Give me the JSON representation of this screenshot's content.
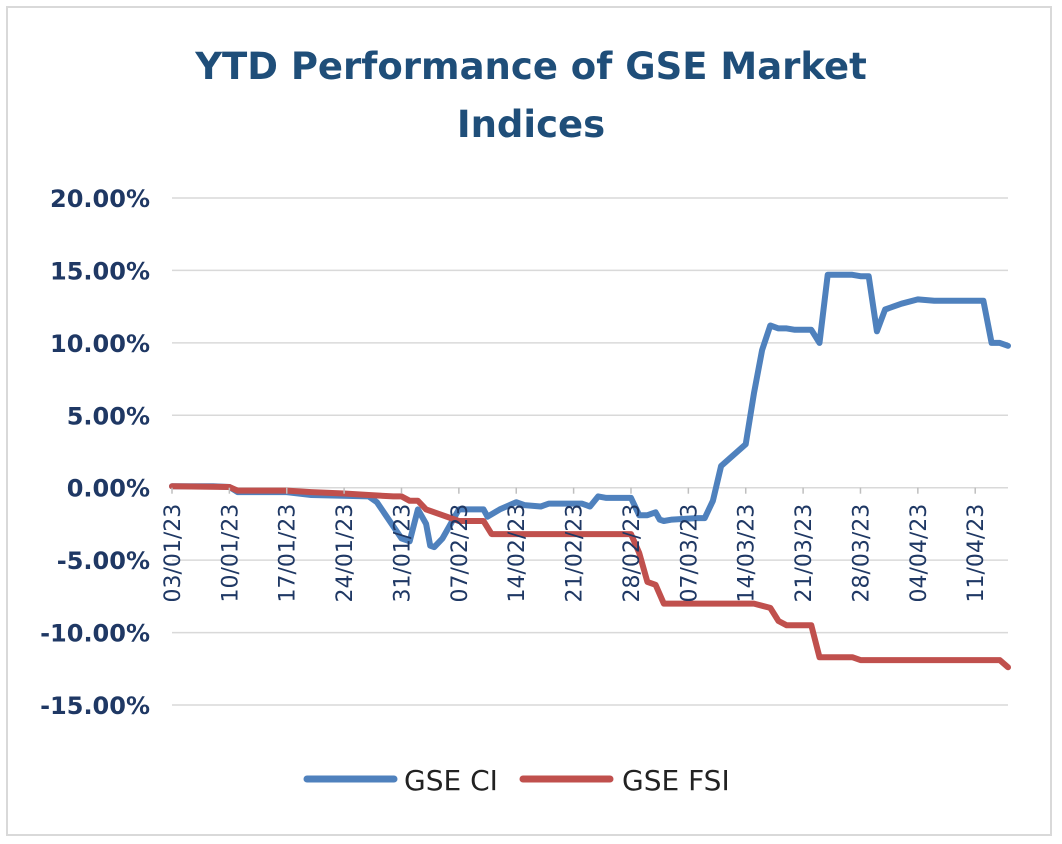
{
  "chart_data": {
    "type": "line",
    "title_lines": [
      "YTD Performance of GSE Market",
      "Indices"
    ],
    "title": "YTD Performance of GSE Market Indices",
    "xlabel": "",
    "ylabel": "",
    "ylim": [
      -15,
      20
    ],
    "yticks": [
      20,
      15,
      10,
      5,
      0,
      -5,
      -10,
      -15
    ],
    "ytick_labels": [
      "20.00%",
      "15.00%",
      "10.00%",
      "5.00%",
      "0.00%",
      "-5.00%",
      "-10.00%",
      "-15.00%"
    ],
    "x_range": [
      0,
      102
    ],
    "xtick_positions": [
      0,
      7,
      14,
      21,
      28,
      35,
      42,
      49,
      56,
      63,
      70,
      77,
      84,
      91,
      98
    ],
    "xtick_labels": [
      "03/01/23",
      "10/01/23",
      "17/01/23",
      "24/01/23",
      "31/01/23",
      "07/02/23",
      "14/02/23",
      "21/02/23",
      "28/02/23",
      "07/03/23",
      "14/03/23",
      "21/03/23",
      "28/03/23",
      "04/04/23",
      "11/04/23"
    ],
    "grid": true,
    "legend_position": "bottom",
    "series": [
      {
        "name": "GSE CI",
        "color": "#4f81bd",
        "points": [
          [
            0,
            0.1
          ],
          [
            5,
            0.1
          ],
          [
            7,
            0.05
          ],
          [
            8,
            -0.3
          ],
          [
            14,
            -0.3
          ],
          [
            17,
            -0.5
          ],
          [
            24,
            -0.6
          ],
          [
            25,
            -1.0
          ],
          [
            28,
            -3.5
          ],
          [
            29,
            -3.7
          ],
          [
            30,
            -1.5
          ],
          [
            31,
            -2.5
          ],
          [
            31.5,
            -4.0
          ],
          [
            32,
            -4.1
          ],
          [
            33,
            -3.5
          ],
          [
            34,
            -2.5
          ],
          [
            35,
            -1.5
          ],
          [
            38,
            -1.5
          ],
          [
            38.5,
            -2.0
          ],
          [
            40,
            -1.5
          ],
          [
            42,
            -1.0
          ],
          [
            43,
            -1.2
          ],
          [
            45,
            -1.3
          ],
          [
            46,
            -1.1
          ],
          [
            50,
            -1.1
          ],
          [
            51,
            -1.3
          ],
          [
            52,
            -0.6
          ],
          [
            53,
            -0.7
          ],
          [
            56,
            -0.7
          ],
          [
            57,
            -1.9
          ],
          [
            58,
            -1.9
          ],
          [
            59,
            -1.7
          ],
          [
            59.5,
            -2.2
          ],
          [
            60,
            -2.3
          ],
          [
            61,
            -2.2
          ],
          [
            64,
            -2.1
          ],
          [
            65,
            -2.1
          ],
          [
            66,
            -0.9
          ],
          [
            67,
            1.5
          ],
          [
            68,
            2.0
          ],
          [
            69,
            2.5
          ],
          [
            70,
            3.0
          ],
          [
            71,
            6.5
          ],
          [
            72,
            9.5
          ],
          [
            73,
            11.2
          ],
          [
            74,
            11.0
          ],
          [
            75,
            11.0
          ],
          [
            76,
            10.9
          ],
          [
            78,
            10.9
          ],
          [
            79,
            10.0
          ],
          [
            80,
            14.7
          ],
          [
            83,
            14.7
          ],
          [
            84,
            14.6
          ],
          [
            85,
            14.6
          ],
          [
            86,
            10.8
          ],
          [
            87,
            12.3
          ],
          [
            88,
            12.5
          ],
          [
            89,
            12.7
          ],
          [
            91,
            13.0
          ],
          [
            93,
            12.9
          ],
          [
            99,
            12.9
          ],
          [
            100,
            10.0
          ],
          [
            101,
            10.0
          ],
          [
            102,
            9.8
          ]
        ]
      },
      {
        "name": "GSE FSI",
        "color": "#c0504d",
        "points": [
          [
            0,
            0.1
          ],
          [
            7,
            0.05
          ],
          [
            8,
            -0.2
          ],
          [
            14,
            -0.2
          ],
          [
            17,
            -0.3
          ],
          [
            21,
            -0.4
          ],
          [
            24,
            -0.5
          ],
          [
            27,
            -0.6
          ],
          [
            28,
            -0.6
          ],
          [
            29,
            -0.9
          ],
          [
            30,
            -0.9
          ],
          [
            31,
            -1.5
          ],
          [
            32,
            -1.7
          ],
          [
            33,
            -1.9
          ],
          [
            35,
            -2.3
          ],
          [
            38,
            -2.3
          ],
          [
            39,
            -3.2
          ],
          [
            56,
            -3.2
          ],
          [
            57,
            -4.5
          ],
          [
            58,
            -6.5
          ],
          [
            59,
            -6.7
          ],
          [
            60,
            -8.0
          ],
          [
            71,
            -8.0
          ],
          [
            73,
            -8.3
          ],
          [
            74,
            -9.2
          ],
          [
            75,
            -9.5
          ],
          [
            78,
            -9.5
          ],
          [
            79,
            -11.7
          ],
          [
            83,
            -11.7
          ],
          [
            84,
            -11.9
          ],
          [
            101,
            -11.9
          ],
          [
            102,
            -12.4
          ]
        ]
      }
    ]
  }
}
